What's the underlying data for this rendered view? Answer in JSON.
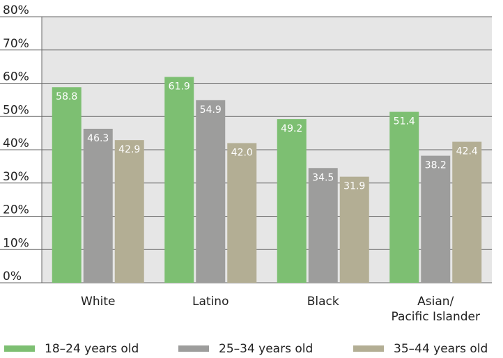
{
  "chart_data": {
    "type": "bar",
    "title": "",
    "xlabel": "",
    "ylabel": "",
    "ylim": [
      0,
      80
    ],
    "ytick_step": 10,
    "ytick_labels": [
      "0%",
      "10%",
      "20%",
      "30%",
      "40%",
      "50%",
      "60%",
      "70%",
      "80%"
    ],
    "grid": true,
    "legend_position": "bottom",
    "categories": [
      {
        "lines": [
          "White"
        ]
      },
      {
        "lines": [
          "Latino"
        ]
      },
      {
        "lines": [
          "Black"
        ]
      },
      {
        "lines": [
          "Asian/",
          "Pacific Islander"
        ]
      }
    ],
    "series": [
      {
        "name": "18–24 years old",
        "color": "#7dbf72",
        "values": [
          58.8,
          61.9,
          49.2,
          51.4
        ],
        "labels": [
          "58.8",
          "61.9",
          "49.2",
          "51.4"
        ]
      },
      {
        "name": "25–34 years old",
        "color": "#9d9d9c",
        "values": [
          46.3,
          54.9,
          34.5,
          38.2
        ],
        "labels": [
          "46.3",
          "54.9",
          "34.5",
          "38.2"
        ]
      },
      {
        "name": "35–44 years old",
        "color": "#b3ae94",
        "values": [
          42.9,
          42.0,
          31.9,
          42.4
        ],
        "labels": [
          "42.9",
          "42.0",
          "31.9",
          "42.4"
        ]
      }
    ],
    "plot_background": "#e6e6e6"
  }
}
